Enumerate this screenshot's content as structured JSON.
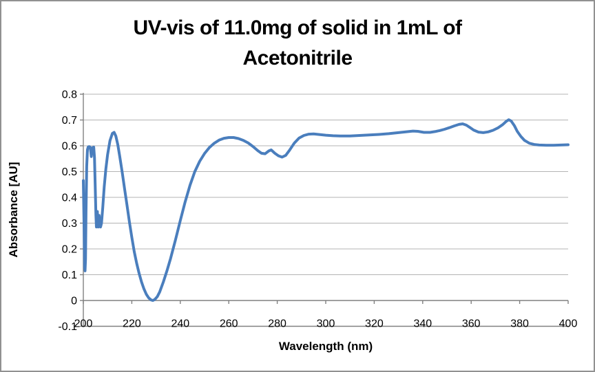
{
  "window": {
    "background": "#ffffff",
    "border_color": "#919191"
  },
  "title": {
    "line1": "UV-vis of 11.0mg of solid in 1mL of",
    "line2": "Acetonitrile"
  },
  "style": {
    "gridline_color": "#b3b3b3",
    "axis_color": "#808080",
    "text_color": "#000000",
    "line_color": "#4A7EBD",
    "line_width": 4
  },
  "chart_data": {
    "type": "line",
    "title": "UV-vis of 11.0mg of solid in 1mL of Acetonitrile",
    "xlabel": "Wavelength (nm)",
    "ylabel": "Absorbance [AU]",
    "xlim": [
      200,
      400
    ],
    "ylim": [
      -0.1,
      0.8
    ],
    "x_ticks": [
      200,
      220,
      240,
      260,
      280,
      300,
      320,
      340,
      360,
      380,
      400
    ],
    "y_ticks": [
      -0.1,
      0,
      0.1,
      0.2,
      0.3,
      0.4,
      0.5,
      0.6,
      0.7,
      0.8
    ],
    "grid": "horizontal",
    "legend": false,
    "series": [
      {
        "name": "Absorbance",
        "color": "#4A7EBD",
        "points": [
          [
            200.0,
            0.465
          ],
          [
            200.3,
            0.28
          ],
          [
            200.5,
            0.13
          ],
          [
            200.7,
            0.115
          ],
          [
            200.9,
            0.16
          ],
          [
            201.1,
            0.34
          ],
          [
            201.4,
            0.52
          ],
          [
            201.7,
            0.585
          ],
          [
            202.0,
            0.595
          ],
          [
            202.4,
            0.597
          ],
          [
            202.8,
            0.595
          ],
          [
            203.1,
            0.575
          ],
          [
            203.3,
            0.558
          ],
          [
            203.5,
            0.575
          ],
          [
            203.9,
            0.593
          ],
          [
            204.3,
            0.595
          ],
          [
            204.6,
            0.555
          ],
          [
            204.9,
            0.45
          ],
          [
            205.2,
            0.33
          ],
          [
            205.4,
            0.285
          ],
          [
            205.6,
            0.31
          ],
          [
            205.8,
            0.345
          ],
          [
            206.0,
            0.3
          ],
          [
            206.2,
            0.285
          ],
          [
            206.5,
            0.33
          ],
          [
            206.8,
            0.3
          ],
          [
            207.1,
            0.285
          ],
          [
            207.5,
            0.3
          ],
          [
            208.0,
            0.36
          ],
          [
            208.6,
            0.44
          ],
          [
            209.3,
            0.51
          ],
          [
            210.0,
            0.565
          ],
          [
            211.0,
            0.62
          ],
          [
            212.0,
            0.648
          ],
          [
            212.7,
            0.652
          ],
          [
            213.4,
            0.638
          ],
          [
            214.2,
            0.605
          ],
          [
            215.0,
            0.56
          ],
          [
            216.0,
            0.5
          ],
          [
            217.0,
            0.435
          ],
          [
            218.0,
            0.37
          ],
          [
            219.0,
            0.305
          ],
          [
            220.0,
            0.245
          ],
          [
            221.0,
            0.19
          ],
          [
            222.0,
            0.145
          ],
          [
            223.0,
            0.105
          ],
          [
            224.0,
            0.072
          ],
          [
            225.0,
            0.045
          ],
          [
            226.0,
            0.024
          ],
          [
            227.0,
            0.01
          ],
          [
            228.0,
            0.002
          ],
          [
            228.7,
            0.0
          ],
          [
            229.5,
            0.004
          ],
          [
            230.5,
            0.015
          ],
          [
            231.5,
            0.033
          ],
          [
            233.0,
            0.072
          ],
          [
            234.5,
            0.115
          ],
          [
            236.0,
            0.163
          ],
          [
            238.0,
            0.235
          ],
          [
            240.0,
            0.31
          ],
          [
            242.0,
            0.382
          ],
          [
            244.0,
            0.447
          ],
          [
            246.0,
            0.5
          ],
          [
            248.0,
            0.54
          ],
          [
            250.0,
            0.57
          ],
          [
            252.0,
            0.593
          ],
          [
            254.0,
            0.61
          ],
          [
            256.0,
            0.622
          ],
          [
            258.0,
            0.629
          ],
          [
            260.0,
            0.632
          ],
          [
            262.0,
            0.632
          ],
          [
            264.0,
            0.628
          ],
          [
            266.0,
            0.621
          ],
          [
            268.0,
            0.611
          ],
          [
            270.0,
            0.597
          ],
          [
            272.0,
            0.581
          ],
          [
            273.5,
            0.571
          ],
          [
            275.0,
            0.569
          ],
          [
            276.5,
            0.58
          ],
          [
            277.5,
            0.584
          ],
          [
            279.0,
            0.571
          ],
          [
            280.5,
            0.561
          ],
          [
            282.0,
            0.556
          ],
          [
            283.5,
            0.563
          ],
          [
            285.0,
            0.582
          ],
          [
            287.0,
            0.61
          ],
          [
            289.0,
            0.63
          ],
          [
            291.0,
            0.64
          ],
          [
            293.0,
            0.645
          ],
          [
            295.0,
            0.646
          ],
          [
            297.0,
            0.644
          ],
          [
            300.0,
            0.641
          ],
          [
            303.0,
            0.639
          ],
          [
            306.0,
            0.638
          ],
          [
            310.0,
            0.638
          ],
          [
            314.0,
            0.64
          ],
          [
            318.0,
            0.642
          ],
          [
            322.0,
            0.644
          ],
          [
            326.0,
            0.647
          ],
          [
            330.0,
            0.651
          ],
          [
            333.0,
            0.654
          ],
          [
            336.0,
            0.657
          ],
          [
            338.0,
            0.656
          ],
          [
            340.5,
            0.652
          ],
          [
            343.0,
            0.652
          ],
          [
            345.0,
            0.655
          ],
          [
            347.0,
            0.659
          ],
          [
            349.0,
            0.664
          ],
          [
            351.0,
            0.67
          ],
          [
            353.0,
            0.677
          ],
          [
            355.0,
            0.683
          ],
          [
            356.5,
            0.685
          ],
          [
            358.0,
            0.68
          ],
          [
            359.5,
            0.671
          ],
          [
            361.0,
            0.661
          ],
          [
            363.0,
            0.653
          ],
          [
            365.0,
            0.651
          ],
          [
            367.0,
            0.654
          ],
          [
            369.0,
            0.66
          ],
          [
            371.0,
            0.669
          ],
          [
            373.0,
            0.682
          ],
          [
            374.5,
            0.695
          ],
          [
            375.5,
            0.701
          ],
          [
            376.5,
            0.696
          ],
          [
            377.8,
            0.678
          ],
          [
            379.0,
            0.656
          ],
          [
            380.5,
            0.636
          ],
          [
            382.0,
            0.621
          ],
          [
            384.0,
            0.61
          ],
          [
            386.0,
            0.605
          ],
          [
            388.0,
            0.603
          ],
          [
            391.0,
            0.602
          ],
          [
            394.0,
            0.602
          ],
          [
            397.0,
            0.603
          ],
          [
            400.0,
            0.604
          ]
        ]
      }
    ]
  }
}
